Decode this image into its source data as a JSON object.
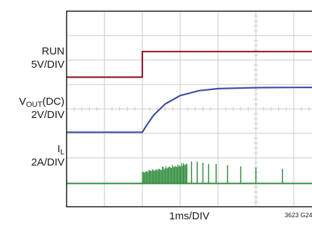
{
  "labels": {
    "run": {
      "name": "RUN",
      "scale": "5V/DIV"
    },
    "vout": {
      "name_main": "V",
      "name_sub": "OUT",
      "name_suffix": "(DC)",
      "scale": "2V/DIV"
    },
    "il": {
      "name_main": "I",
      "name_sub": "L",
      "scale": "2A/DIV"
    },
    "timebase": "1ms/DIV",
    "figure_id": "3623 G24"
  },
  "colors": {
    "grid": "#c8c8c8",
    "frame": "#1a1a1a",
    "run": "#8b1a2e",
    "vout": "#3a4fa0",
    "il": "#2e8b3a"
  },
  "chart_data": {
    "type": "line",
    "title": "",
    "xlabel": "1ms/DIV",
    "grid": true,
    "divisions": {
      "x": 10,
      "y": 8
    },
    "x_unit": "ms",
    "series": [
      {
        "name": "RUN",
        "scale": "5V/DIV",
        "baseline_div": 2.7,
        "points": [
          [
            0,
            0
          ],
          [
            2.0,
            0
          ],
          [
            2.0,
            1.05
          ],
          [
            10,
            1.05
          ]
        ]
      },
      {
        "name": "VOUT(DC)",
        "scale": "2V/DIV",
        "baseline_div": 4.95,
        "points": [
          [
            0,
            0
          ],
          [
            2.0,
            0
          ],
          [
            2.1,
            0.25
          ],
          [
            2.3,
            0.7
          ],
          [
            2.6,
            1.15
          ],
          [
            3.0,
            1.5
          ],
          [
            3.5,
            1.7
          ],
          [
            4.0,
            1.78
          ],
          [
            5.0,
            1.82
          ],
          [
            6.0,
            1.83
          ],
          [
            10,
            1.84
          ]
        ]
      },
      {
        "name": "IL",
        "scale": "2A/DIV",
        "baseline_div": 7.05,
        "burst": {
          "start_ms": 2.0,
          "end_ms": 3.2,
          "peak_div": 0.95
        },
        "spikes": [
          {
            "t": 3.3,
            "div": 0.9
          },
          {
            "t": 3.45,
            "div": 0.9
          },
          {
            "t": 3.6,
            "div": 0.85
          },
          {
            "t": 3.75,
            "div": 0.8
          },
          {
            "t": 3.95,
            "div": 0.8
          },
          {
            "t": 4.25,
            "div": 0.75
          },
          {
            "t": 4.6,
            "div": 0.7
          },
          {
            "t": 5.0,
            "div": 0.65
          },
          {
            "t": 5.7,
            "div": 0.6
          },
          {
            "t": 8.6,
            "div": 0.95
          }
        ]
      }
    ]
  }
}
